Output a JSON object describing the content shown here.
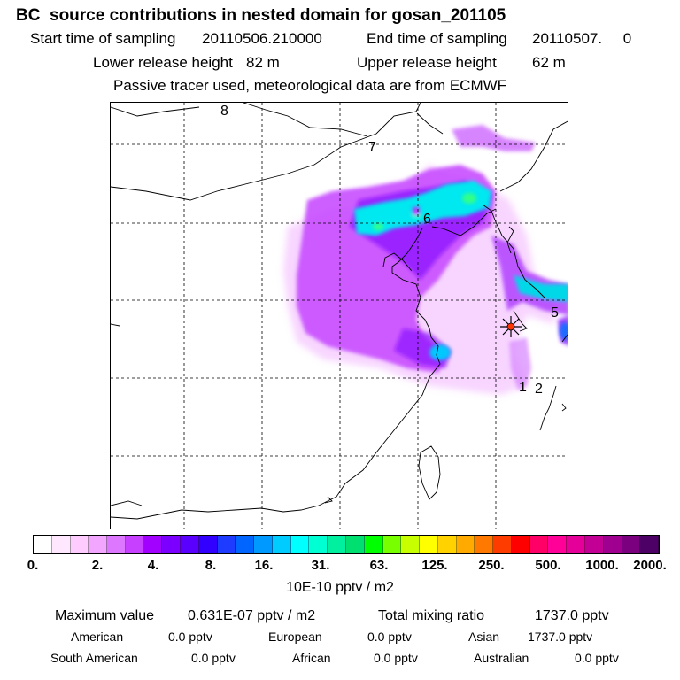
{
  "header": {
    "title": "BC  source contributions in nested domain for gosan_201105",
    "start_label": "Start time of sampling",
    "start_value": "20110506.210000",
    "end_label": "End time of sampling",
    "end_value": "20110507.     0",
    "lower_label": "Lower release height",
    "lower_value": "82 m",
    "upper_label": "Upper release height",
    "upper_value": "62 m",
    "note": "Passive tracer used, meteorological data are from ECMWF"
  },
  "map": {
    "region_numbers": [
      "8",
      "7",
      "6",
      "5",
      "1",
      "2"
    ],
    "release_site_icon": "star-icon"
  },
  "colorbar": {
    "colors": [
      "#ffffff",
      "#ffe8ff",
      "#ffccff",
      "#f2a6ff",
      "#dd77ff",
      "#c840ff",
      "#a200ff",
      "#7b00ff",
      "#5a00ff",
      "#3200ff",
      "#1e3cff",
      "#0066ff",
      "#0099ff",
      "#00ccff",
      "#00ffff",
      "#00ffd2",
      "#00f0a0",
      "#00e070",
      "#00ff00",
      "#78ff00",
      "#c8ff00",
      "#ffff00",
      "#ffd200",
      "#ffaa00",
      "#ff7800",
      "#ff3c00",
      "#ff0000",
      "#ff0066",
      "#ff0099",
      "#e6009a",
      "#c30096",
      "#a00090",
      "#7a0080",
      "#4d0066"
    ],
    "tick_labels": [
      "0.",
      "2.",
      "4.",
      "8.",
      "16.",
      "31.",
      "63.",
      "125.",
      "250.",
      "500.",
      "1000.",
      "2000."
    ],
    "unit": "10E-10 pptv / m2"
  },
  "summary": {
    "max_label": "Maximum value",
    "max_value": "0.631E-07 pptv / m2",
    "total_label": "Total mixing ratio",
    "total_value": "1737.0 pptv",
    "regions": [
      {
        "name": "American",
        "value": "0.0 pptv"
      },
      {
        "name": "European",
        "value": "0.0 pptv"
      },
      {
        "name": "Asian",
        "value": "1737.0 pptv"
      },
      {
        "name": "South American",
        "value": "0.0 pptv"
      },
      {
        "name": "African",
        "value": "0.0 pptv"
      },
      {
        "name": "Australian",
        "value": "0.0 pptv"
      }
    ]
  }
}
